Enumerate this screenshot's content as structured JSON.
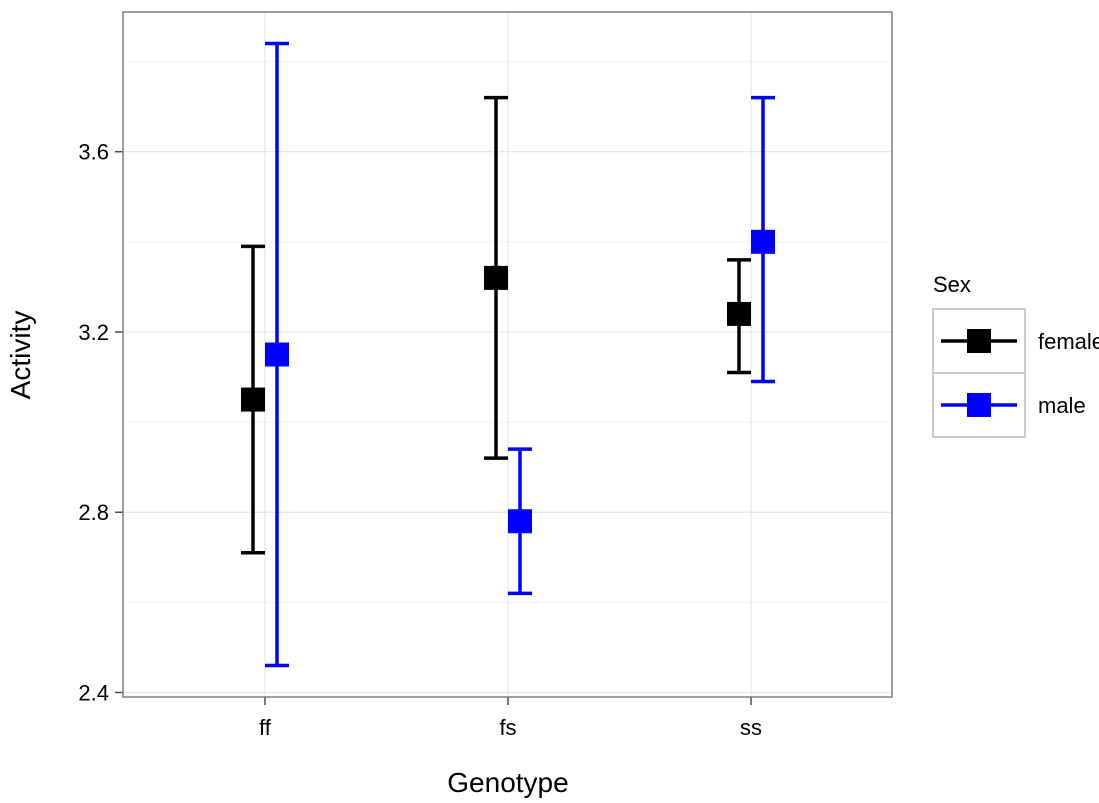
{
  "chart_data": {
    "type": "scatter",
    "title": "",
    "xlabel": "Genotype",
    "ylabel": "Activity",
    "categories": [
      "ff",
      "fs",
      "ss"
    ],
    "ylim": [
      2.39,
      3.91
    ],
    "yticks": [
      "2.4",
      "2.8",
      "3.2",
      "3.6"
    ],
    "grid": true,
    "legend": {
      "title": "Sex",
      "placement": "right"
    },
    "series": [
      {
        "name": "female",
        "color": "#000000",
        "points": [
          {
            "x": "ff",
            "y": 3.05,
            "ymin": 2.71,
            "ymax": 3.39
          },
          {
            "x": "fs",
            "y": 3.32,
            "ymin": 2.92,
            "ymax": 3.72
          },
          {
            "x": "ss",
            "y": 3.24,
            "ymin": 3.11,
            "ymax": 3.36
          }
        ]
      },
      {
        "name": "male",
        "color": "#0000FF",
        "points": [
          {
            "x": "ff",
            "y": 3.15,
            "ymin": 2.46,
            "ymax": 3.84
          },
          {
            "x": "fs",
            "y": 2.78,
            "ymin": 2.62,
            "ymax": 2.94
          },
          {
            "x": "ss",
            "y": 3.4,
            "ymin": 3.09,
            "ymax": 3.72
          }
        ]
      }
    ]
  }
}
